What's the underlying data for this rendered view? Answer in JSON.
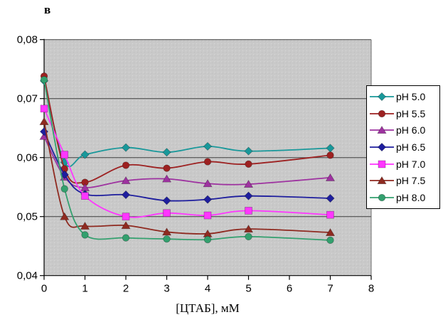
{
  "chart_data": {
    "type": "line",
    "panel_label": "в",
    "title": "",
    "xlabel": "[ЦТАБ], мМ",
    "ylabel": "",
    "xlim": [
      0,
      8
    ],
    "ylim": [
      0.04,
      0.08
    ],
    "grid": "horizontal",
    "legend_position": "right",
    "plot_bg_color": "#c9c9c9",
    "gridline_color": "#3f3f3f",
    "xticks": [
      0,
      1,
      2,
      3,
      4,
      5,
      6,
      7,
      8
    ],
    "xtick_labels": [
      "0",
      "1",
      "2",
      "3",
      "4",
      "5",
      "6",
      "7",
      "8"
    ],
    "yticks": [
      {
        "v": 0.08,
        "label": "0,08"
      },
      {
        "v": 0.07,
        "label": "0,07"
      },
      {
        "v": 0.06,
        "label": "0,06"
      },
      {
        "v": 0.05,
        "label": "0,05"
      },
      {
        "v": 0.04,
        "label": "0,04"
      }
    ],
    "x": [
      0,
      0.5,
      1,
      2,
      3,
      4,
      5,
      7
    ],
    "series": [
      {
        "name": "pH 5.0",
        "color": "#18989a",
        "marker": "diamond",
        "values": [
          0.073,
          0.0592,
          0.0605,
          0.0617,
          0.0609,
          0.0619,
          0.0611,
          0.0616
        ]
      },
      {
        "name": "pH 5.5",
        "color": "#9d2121",
        "marker": "circle",
        "values": [
          0.0738,
          0.0581,
          0.0558,
          0.0587,
          0.0582,
          0.0593,
          0.0589,
          0.0604
        ]
      },
      {
        "name": "pH 6.0",
        "color": "#9e32a0",
        "marker": "triangle",
        "values": [
          0.0636,
          0.0567,
          0.0549,
          0.0561,
          0.0564,
          0.0556,
          0.0555,
          0.0566
        ]
      },
      {
        "name": "pH 6.5",
        "color": "#1e1e9e",
        "marker": "diamond",
        "values": [
          0.0644,
          0.0571,
          0.0538,
          0.0537,
          0.0527,
          0.0529,
          0.0535,
          0.0531
        ]
      },
      {
        "name": "pH 7.0",
        "color": "#ff35ff",
        "marker": "square",
        "values": [
          0.0683,
          0.0605,
          0.0535,
          0.05,
          0.0506,
          0.0502,
          0.051,
          0.0503
        ]
      },
      {
        "name": "pH 7.5",
        "color": "#8f2a20",
        "marker": "triangle",
        "values": [
          0.0661,
          0.05,
          0.0484,
          0.0485,
          0.0474,
          0.0471,
          0.0479,
          0.0473
        ]
      },
      {
        "name": "pH 8.0",
        "color": "#33a06e",
        "marker": "circle",
        "values": [
          0.0732,
          0.0547,
          0.0469,
          0.0464,
          0.0462,
          0.0461,
          0.0466,
          0.046
        ]
      }
    ]
  }
}
